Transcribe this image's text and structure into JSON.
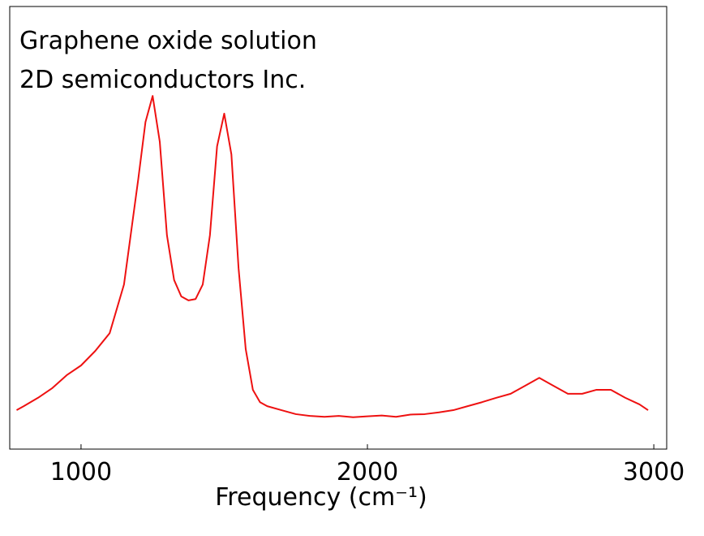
{
  "chart_data": {
    "type": "line",
    "annotations": [
      "Graphene oxide solution",
      "2D semiconductors Inc."
    ],
    "x_label": "Frequency (cm⁻¹)",
    "x": [
      775,
      800,
      850,
      900,
      950,
      1000,
      1050,
      1100,
      1150,
      1200,
      1225,
      1250,
      1275,
      1300,
      1325,
      1350,
      1375,
      1400,
      1425,
      1450,
      1475,
      1500,
      1525,
      1550,
      1575,
      1600,
      1625,
      1650,
      1700,
      1750,
      1800,
      1850,
      1900,
      1950,
      2000,
      2050,
      2100,
      2150,
      2200,
      2250,
      2300,
      2350,
      2400,
      2450,
      2500,
      2550,
      2600,
      2650,
      2700,
      2750,
      2800,
      2850,
      2900,
      2950,
      2980
    ],
    "series": [
      {
        "color": "#ee1111",
        "values": [
          8.8,
          9.7,
          11.6,
          13.8,
          16.7,
          18.9,
          22.2,
          26.2,
          37.2,
          61.1,
          73.9,
          79.8,
          69.4,
          48.3,
          38.2,
          34.5,
          33.6,
          33.9,
          37.2,
          48.3,
          68.4,
          75.8,
          66.6,
          40.9,
          22.6,
          13.4,
          10.6,
          9.7,
          8.8,
          7.9,
          7.5,
          7.3,
          7.5,
          7.2,
          7.4,
          7.6,
          7.3,
          7.8,
          7.9,
          8.3,
          8.8,
          9.7,
          10.6,
          11.6,
          12.5,
          14.3,
          16.1,
          14.3,
          12.5,
          12.5,
          13.4,
          13.4,
          11.6,
          10.1,
          8.8
        ]
      }
    ],
    "xlim": [
      751,
      3045
    ],
    "ylim": [
      0,
      100
    ],
    "xticks": [
      1000,
      2000,
      3000
    ]
  }
}
